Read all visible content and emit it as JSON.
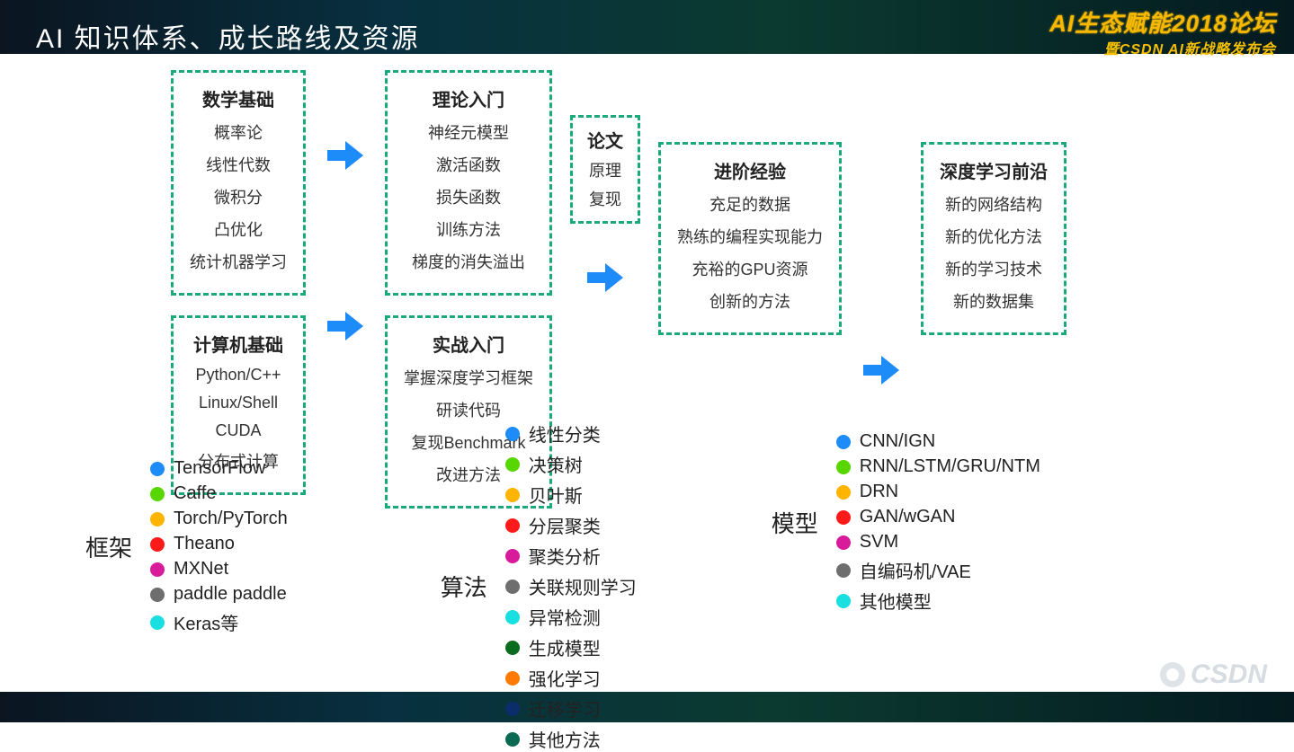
{
  "page": {
    "title": "AI 知识体系、成长路线及资源",
    "logo_line1": "AI生态赋能2018论坛",
    "logo_line2": "暨CSDN AI新战略发布会",
    "watermark": "CSDN"
  },
  "colors": {
    "box_border": "#19a97b",
    "arrow": "#1d8cf8",
    "text": "#222222",
    "bg": "#ffffff"
  },
  "flow": {
    "col1": {
      "box_a": {
        "title": "数学基础",
        "items": [
          "概率论",
          "线性代数",
          "微积分",
          "凸优化",
          "统计机器学习"
        ]
      },
      "box_b": {
        "title": "计算机基础",
        "items": [
          "Python/C++",
          "Linux/Shell",
          "CUDA",
          "分布式计算"
        ]
      }
    },
    "col2": {
      "box_a": {
        "title": "理论入门",
        "items": [
          "神经元模型",
          "激活函数",
          "损失函数",
          "训练方法",
          "梯度的消失溢出"
        ]
      },
      "box_b": {
        "title": "实战入门",
        "items": [
          "掌握深度学习框架",
          "研读代码",
          "复现Benchmark",
          "改进方法"
        ]
      }
    },
    "mid_box": {
      "title": "论文",
      "items": [
        "原理",
        "复现"
      ]
    },
    "col3": {
      "title": "进阶经验",
      "items": [
        "充足的数据",
        "熟练的编程实现能力",
        "充裕的GPU资源",
        "创新的方法"
      ]
    },
    "col4": {
      "title": "深度学习前沿",
      "items": [
        "新的网络结构",
        "新的优化方法",
        "新的学习技术",
        "新的数据集"
      ]
    }
  },
  "categories": {
    "frameworks": {
      "label": "框架",
      "items": [
        {
          "color": "#1d8cf8",
          "text": "TensorFlow"
        },
        {
          "color": "#58d600",
          "text": "Caffe"
        },
        {
          "color": "#ffb400",
          "text": "Torch/PyTorch"
        },
        {
          "color": "#ff1a1a",
          "text": "Theano"
        },
        {
          "color": "#d81b9a",
          "text": "MXNet"
        },
        {
          "color": "#6e6e6e",
          "text": "paddle paddle"
        },
        {
          "color": "#19dfe0",
          "text": "Keras等"
        }
      ]
    },
    "algorithms": {
      "label": "算法",
      "items": [
        {
          "color": "#1d8cf8",
          "text": "线性分类"
        },
        {
          "color": "#58d600",
          "text": "决策树"
        },
        {
          "color": "#ffb400",
          "text": "贝叶斯"
        },
        {
          "color": "#ff1a1a",
          "text": "分层聚类"
        },
        {
          "color": "#d81b9a",
          "text": "聚类分析"
        },
        {
          "color": "#6e6e6e",
          "text": "关联规则学习"
        },
        {
          "color": "#19dfe0",
          "text": "异常检测"
        },
        {
          "color": "#0b6b1e",
          "text": "生成模型"
        },
        {
          "color": "#ff7a00",
          "text": "强化学习"
        },
        {
          "color": "#0b2e6b",
          "text": "迁移学习"
        },
        {
          "color": "#0b6b52",
          "text": "其他方法"
        }
      ]
    },
    "models": {
      "label": "模型",
      "items": [
        {
          "color": "#1d8cf8",
          "text": "CNN/IGN"
        },
        {
          "color": "#58d600",
          "text": "RNN/LSTM/GRU/NTM"
        },
        {
          "color": "#ffb400",
          "text": "DRN"
        },
        {
          "color": "#ff1a1a",
          "text": "GAN/wGAN"
        },
        {
          "color": "#d81b9a",
          "text": "SVM"
        },
        {
          "color": "#6e6e6e",
          "text": "自编码机/VAE"
        },
        {
          "color": "#19dfe0",
          "text": "其他模型"
        }
      ]
    }
  }
}
